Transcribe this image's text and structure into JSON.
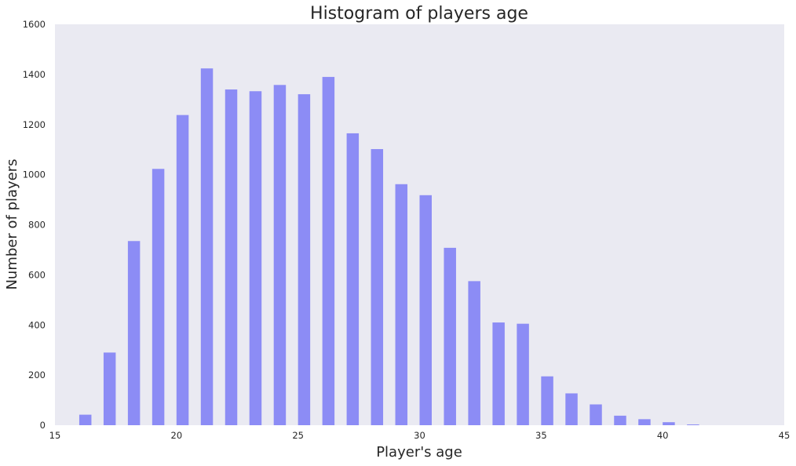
{
  "chart_data": {
    "type": "bar",
    "title": "Histogram of players age",
    "xlabel": "Player's age",
    "ylabel": "Number of players",
    "xlim": [
      15,
      45
    ],
    "ylim": [
      0,
      1600
    ],
    "xticks": [
      15,
      20,
      25,
      30,
      35,
      40,
      45
    ],
    "yticks": [
      0,
      200,
      400,
      600,
      800,
      1000,
      1200,
      1400,
      1600
    ],
    "bin_width": 0.5,
    "grid": false,
    "bar_color": "#8c8cf5",
    "background_color": "#eaeaf2",
    "x": [
      16,
      17,
      18,
      19,
      20,
      21,
      22,
      23,
      24,
      25,
      26,
      27,
      28,
      29,
      30,
      31,
      32,
      33,
      34,
      35,
      36,
      37,
      38,
      39,
      40,
      41
    ],
    "values": [
      42,
      290,
      735,
      1023,
      1238,
      1424,
      1340,
      1333,
      1358,
      1321,
      1390,
      1165,
      1102,
      962,
      918,
      708,
      575,
      410,
      405,
      195,
      127,
      83,
      38,
      24,
      12,
      3
    ]
  }
}
